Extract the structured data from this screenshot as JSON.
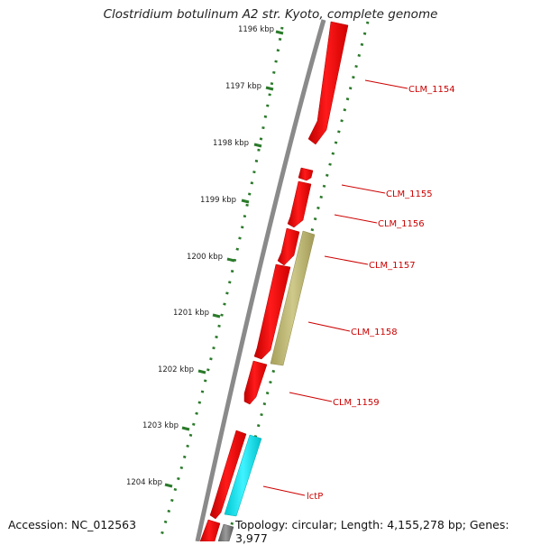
{
  "title": "Clostridium botulinum A2 str. Kyoto, complete genome",
  "accession": "Accession: NC_012563",
  "topology": "Topology: circular; Length: 4,155,278 bp; Genes: 3,977",
  "colors": {
    "backbone": "#888888",
    "tick": "#2a7a2a",
    "gene_forward": "#ff0000",
    "gene_cyan": "#00e5ee",
    "gene_olive": "#b9b36a",
    "gene_gray": "#777777",
    "label": "#cc0000"
  },
  "scale_labels": [
    "1196 kbp",
    "1197 kbp",
    "1198 kbp",
    "1199 kbp",
    "1200 kbp",
    "1201 kbp",
    "1202 kbp",
    "1203 kbp",
    "1204 kbp"
  ],
  "gene_labels": [
    "CLM_1154",
    "CLM_1155",
    "CLM_1156",
    "CLM_1157",
    "CLM_1158",
    "CLM_1159",
    "lctP"
  ]
}
